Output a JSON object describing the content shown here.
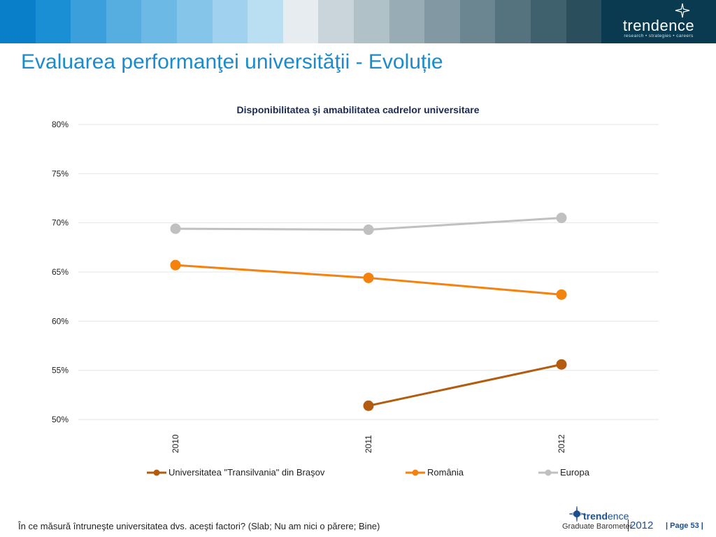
{
  "header": {
    "bands": [
      "#0a7fc9",
      "#1b8fd4",
      "#3a9fdb",
      "#55ade0",
      "#6db9e5",
      "#85c5ea",
      "#a0d2ef",
      "#badff3",
      "#e6ecef",
      "#c9d5da",
      "#b1c1c8",
      "#98acb5",
      "#8299a3",
      "#6c8691",
      "#55737f",
      "#3f606d",
      "#2a4e5c",
      "#163c4b"
    ],
    "brand_name": "trendence",
    "brand_tagline": "research • strategies • careers"
  },
  "slide": {
    "title": "Evaluarea performanţei universităţii - Evoluție"
  },
  "chart_data": {
    "type": "line",
    "title": "Disponibilitatea şi amabilitatea cadrelor universitare",
    "x": [
      "2010",
      "2011",
      "2012"
    ],
    "series": [
      {
        "name": "Universitatea \"Transilvania\" din Braşov",
        "color": "#b35c0f",
        "values": [
          null,
          51.4,
          55.6
        ]
      },
      {
        "name": "România",
        "color": "#f4820f",
        "values": [
          65.7,
          64.4,
          62.7
        ]
      },
      {
        "name": "Europa",
        "color": "#c0c0c0",
        "values": [
          69.4,
          69.3,
          70.5
        ]
      }
    ],
    "ylim": [
      50,
      80
    ],
    "yticks": [
      "50%",
      "55%",
      "60%",
      "65%",
      "70%",
      "75%",
      "80%"
    ],
    "grid": true,
    "legend": "bottom"
  },
  "footer": {
    "question": "În ce măsură întruneşte universitatea dvs. aceşti factori? (Slab; Nu am nici o părere; Bine)",
    "logo_trend": "trend",
    "logo_ence": "ence",
    "logo_sub": "Graduate Barometer",
    "logo_year": "2012",
    "page": "| Page 53 |"
  }
}
